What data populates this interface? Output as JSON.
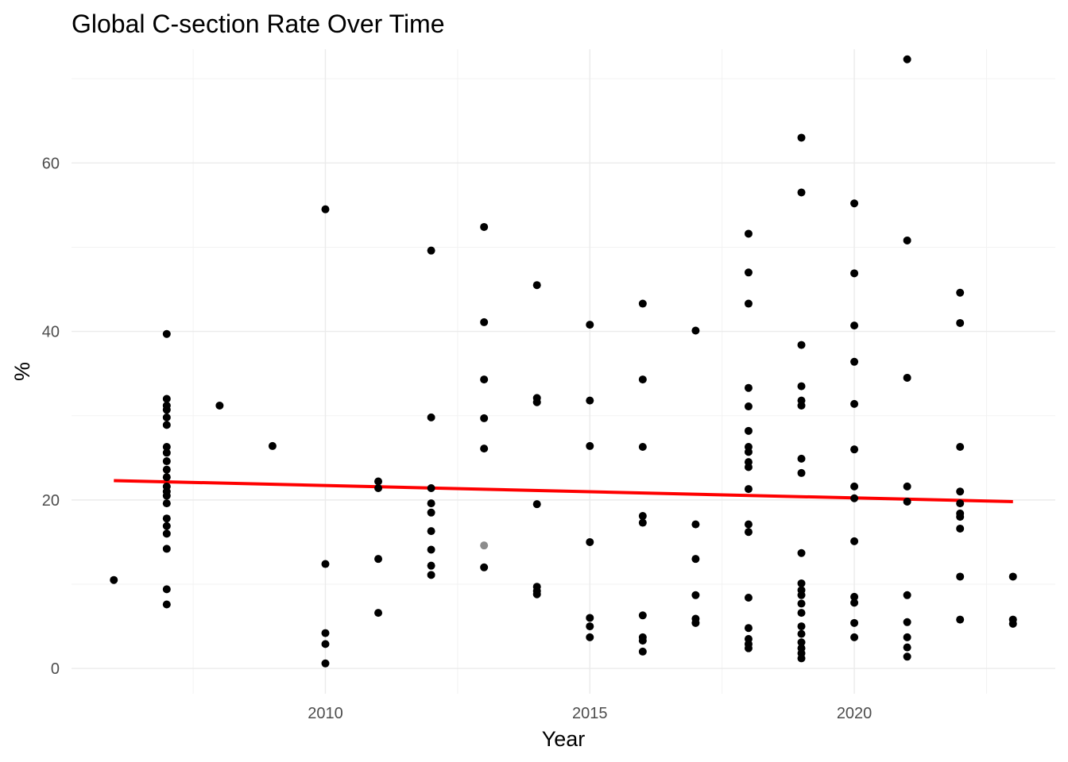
{
  "chart_data": {
    "type": "scatter",
    "title": "Global C-section Rate Over Time",
    "xlabel": "Year",
    "ylabel": "%",
    "xlim": [
      2005.2,
      2023.8
    ],
    "ylim": [
      -3,
      73.5
    ],
    "x_ticks": [
      2010,
      2015,
      2020
    ],
    "y_ticks": [
      0,
      20,
      40,
      60
    ],
    "grid": true,
    "legend": "none",
    "point_color": "#000000",
    "trend_color": "#ff0000",
    "trend_line": {
      "x": [
        2006,
        2023
      ],
      "y": [
        22.3,
        19.8
      ]
    },
    "points": [
      {
        "x": 2006,
        "y": 10.5
      },
      {
        "x": 2007,
        "y": 39.7
      },
      {
        "x": 2007,
        "y": 32
      },
      {
        "x": 2007,
        "y": 31.2
      },
      {
        "x": 2007,
        "y": 30.7
      },
      {
        "x": 2007,
        "y": 29.8
      },
      {
        "x": 2007,
        "y": 28.9
      },
      {
        "x": 2007,
        "y": 26.3
      },
      {
        "x": 2007,
        "y": 25.6
      },
      {
        "x": 2007,
        "y": 24.6
      },
      {
        "x": 2007,
        "y": 23.6
      },
      {
        "x": 2007,
        "y": 22.7
      },
      {
        "x": 2007,
        "y": 21.6
      },
      {
        "x": 2007,
        "y": 21
      },
      {
        "x": 2007,
        "y": 20.5
      },
      {
        "x": 2007,
        "y": 19.6
      },
      {
        "x": 2007,
        "y": 17.8
      },
      {
        "x": 2007,
        "y": 16.9
      },
      {
        "x": 2007,
        "y": 16
      },
      {
        "x": 2007,
        "y": 14.2
      },
      {
        "x": 2007,
        "y": 9.4
      },
      {
        "x": 2007,
        "y": 7.6
      },
      {
        "x": 2008,
        "y": 31.2
      },
      {
        "x": 2009,
        "y": 26.4
      },
      {
        "x": 2010,
        "y": 54.5
      },
      {
        "x": 2010,
        "y": 12.4
      },
      {
        "x": 2010,
        "y": 4.2
      },
      {
        "x": 2010,
        "y": 2.9
      },
      {
        "x": 2010,
        "y": 0.6
      },
      {
        "x": 2011,
        "y": 22.2
      },
      {
        "x": 2011,
        "y": 21.4
      },
      {
        "x": 2011,
        "y": 13
      },
      {
        "x": 2011,
        "y": 6.6
      },
      {
        "x": 2012,
        "y": 49.6
      },
      {
        "x": 2012,
        "y": 29.8
      },
      {
        "x": 2012,
        "y": 21.4
      },
      {
        "x": 2012,
        "y": 19.6
      },
      {
        "x": 2012,
        "y": 18.5
      },
      {
        "x": 2012,
        "y": 16.3
      },
      {
        "x": 2012,
        "y": 14.1
      },
      {
        "x": 2012,
        "y": 12.2
      },
      {
        "x": 2012,
        "y": 11.1
      },
      {
        "x": 2013,
        "y": 52.4
      },
      {
        "x": 2013,
        "y": 41.1
      },
      {
        "x": 2013,
        "y": 34.3
      },
      {
        "x": 2013,
        "y": 29.7
      },
      {
        "x": 2013,
        "y": 26.1
      },
      {
        "x": 2013,
        "y": 14.6,
        "faded": true
      },
      {
        "x": 2013,
        "y": 12
      },
      {
        "x": 2014,
        "y": 45.5
      },
      {
        "x": 2014,
        "y": 32.1
      },
      {
        "x": 2014,
        "y": 31.6
      },
      {
        "x": 2014,
        "y": 19.5
      },
      {
        "x": 2014,
        "y": 9.7
      },
      {
        "x": 2014,
        "y": 9.2
      },
      {
        "x": 2014,
        "y": 8.8
      },
      {
        "x": 2015,
        "y": 40.8
      },
      {
        "x": 2015,
        "y": 31.8
      },
      {
        "x": 2015,
        "y": 26.4
      },
      {
        "x": 2015,
        "y": 15
      },
      {
        "x": 2015,
        "y": 6
      },
      {
        "x": 2015,
        "y": 5
      },
      {
        "x": 2015,
        "y": 3.7
      },
      {
        "x": 2016,
        "y": 43.3
      },
      {
        "x": 2016,
        "y": 34.3
      },
      {
        "x": 2016,
        "y": 26.3
      },
      {
        "x": 2016,
        "y": 18.1
      },
      {
        "x": 2016,
        "y": 17.3
      },
      {
        "x": 2016,
        "y": 6.3
      },
      {
        "x": 2016,
        "y": 3.7
      },
      {
        "x": 2016,
        "y": 3.3
      },
      {
        "x": 2016,
        "y": 2
      },
      {
        "x": 2017,
        "y": 40.1
      },
      {
        "x": 2017,
        "y": 17.1
      },
      {
        "x": 2017,
        "y": 13
      },
      {
        "x": 2017,
        "y": 8.7
      },
      {
        "x": 2017,
        "y": 5.9
      },
      {
        "x": 2017,
        "y": 5.4
      },
      {
        "x": 2018,
        "y": 51.6
      },
      {
        "x": 2018,
        "y": 47
      },
      {
        "x": 2018,
        "y": 43.3
      },
      {
        "x": 2018,
        "y": 33.3
      },
      {
        "x": 2018,
        "y": 31.1
      },
      {
        "x": 2018,
        "y": 28.2
      },
      {
        "x": 2018,
        "y": 26.3
      },
      {
        "x": 2018,
        "y": 25.7
      },
      {
        "x": 2018,
        "y": 24.5
      },
      {
        "x": 2018,
        "y": 23.9
      },
      {
        "x": 2018,
        "y": 21.3
      },
      {
        "x": 2018,
        "y": 17.1
      },
      {
        "x": 2018,
        "y": 16.2
      },
      {
        "x": 2018,
        "y": 8.4
      },
      {
        "x": 2018,
        "y": 4.8
      },
      {
        "x": 2018,
        "y": 3.5
      },
      {
        "x": 2018,
        "y": 2.9
      },
      {
        "x": 2018,
        "y": 2.4
      },
      {
        "x": 2019,
        "y": 63
      },
      {
        "x": 2019,
        "y": 56.5
      },
      {
        "x": 2019,
        "y": 38.4
      },
      {
        "x": 2019,
        "y": 33.5
      },
      {
        "x": 2019,
        "y": 31.8
      },
      {
        "x": 2019,
        "y": 31.2
      },
      {
        "x": 2019,
        "y": 24.9
      },
      {
        "x": 2019,
        "y": 23.2
      },
      {
        "x": 2019,
        "y": 13.7
      },
      {
        "x": 2019,
        "y": 10.1
      },
      {
        "x": 2019,
        "y": 9.3
      },
      {
        "x": 2019,
        "y": 8.7
      },
      {
        "x": 2019,
        "y": 7.7
      },
      {
        "x": 2019,
        "y": 6.6
      },
      {
        "x": 2019,
        "y": 5
      },
      {
        "x": 2019,
        "y": 4.1
      },
      {
        "x": 2019,
        "y": 3.1
      },
      {
        "x": 2019,
        "y": 2.4
      },
      {
        "x": 2019,
        "y": 1.8
      },
      {
        "x": 2019,
        "y": 1.2
      },
      {
        "x": 2020,
        "y": 55.2
      },
      {
        "x": 2020,
        "y": 46.9
      },
      {
        "x": 2020,
        "y": 40.7
      },
      {
        "x": 2020,
        "y": 36.4
      },
      {
        "x": 2020,
        "y": 31.4
      },
      {
        "x": 2020,
        "y": 26
      },
      {
        "x": 2020,
        "y": 21.6
      },
      {
        "x": 2020,
        "y": 20.2
      },
      {
        "x": 2020,
        "y": 15.1
      },
      {
        "x": 2020,
        "y": 8.5
      },
      {
        "x": 2020,
        "y": 7.8
      },
      {
        "x": 2020,
        "y": 5.4
      },
      {
        "x": 2020,
        "y": 3.7
      },
      {
        "x": 2021,
        "y": 72.3
      },
      {
        "x": 2021,
        "y": 50.8
      },
      {
        "x": 2021,
        "y": 34.5
      },
      {
        "x": 2021,
        "y": 21.6
      },
      {
        "x": 2021,
        "y": 19.8
      },
      {
        "x": 2021,
        "y": 8.7
      },
      {
        "x": 2021,
        "y": 5.5
      },
      {
        "x": 2021,
        "y": 3.7
      },
      {
        "x": 2021,
        "y": 2.5
      },
      {
        "x": 2021,
        "y": 1.4
      },
      {
        "x": 2022,
        "y": 44.6
      },
      {
        "x": 2022,
        "y": 41
      },
      {
        "x": 2022,
        "y": 26.3
      },
      {
        "x": 2022,
        "y": 21
      },
      {
        "x": 2022,
        "y": 19.6
      },
      {
        "x": 2022,
        "y": 18.4
      },
      {
        "x": 2022,
        "y": 18
      },
      {
        "x": 2022,
        "y": 16.6
      },
      {
        "x": 2022,
        "y": 10.9
      },
      {
        "x": 2022,
        "y": 5.8
      },
      {
        "x": 2023,
        "y": 10.9
      },
      {
        "x": 2023,
        "y": 5.8
      },
      {
        "x": 2023,
        "y": 5.3
      }
    ]
  }
}
